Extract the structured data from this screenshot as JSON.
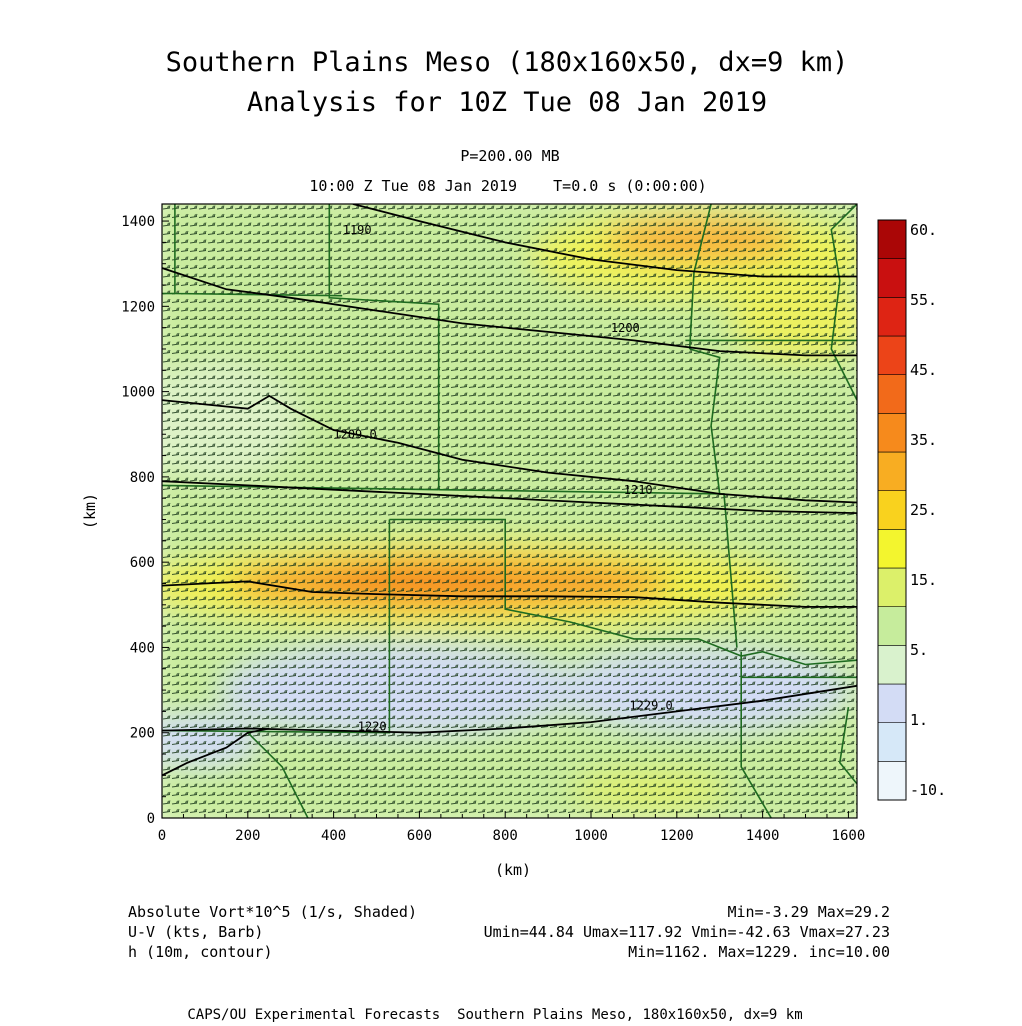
{
  "title_line1": "Southern Plains Meso (180x160x50, dx=9 km)",
  "title_line2": "Analysis for 10Z Tue 08 Jan 2019",
  "subtitle_level": "P=200.00 MB",
  "subtitle_time": "10:00 Z Tue 08 Jan 2019    T=0.0 s (0:00:00)",
  "xlabel": "(km)",
  "ylabel": "(km)",
  "info": {
    "vort_label": "Absolute Vort*10^5 (1/s, Shaded)",
    "vort_stats": "Min=-3.29 Max=29.2",
    "wind_label": "U-V (kts, Barb)",
    "wind_stats": "Umin=44.84 Umax=117.92 Vmin=-42.63 Vmax=27.23",
    "height_label": "h (10m, contour)",
    "height_stats": "Min=1162. Max=1229. inc=10.00"
  },
  "footer": "CAPS/OU Experimental Forecasts  Southern Plains Meso, 180x160x50, dx=9 km",
  "colors": {
    "levels": [
      "#eef6fb",
      "#d6e8f8",
      "#d3dcf5",
      "#d9f2cd",
      "#c6ec9c",
      "#dcf06a",
      "#f3f52e",
      "#f9d21e",
      "#f8ad22",
      "#f68a1c",
      "#f26a1a",
      "#ec4418",
      "#de2414",
      "#c91010",
      "#aa0606"
    ],
    "contour": "#000000",
    "border": "#1e6b20",
    "barb": "#1b3a1b"
  },
  "chart_data": {
    "type": "heatmap",
    "xlim": [
      0,
      1620
    ],
    "ylim": [
      0,
      1440
    ],
    "x_ticks": [
      "0",
      "200",
      "400",
      "600",
      "800",
      "1000",
      "1200",
      "1400",
      "1600"
    ],
    "y_ticks": [
      "0",
      "200",
      "400",
      "600",
      "800",
      "1000",
      "1200",
      "1400"
    ],
    "colorbar_labels": [
      "60.",
      "55.",
      "45.",
      "35.",
      "25.",
      "15.",
      "5.",
      "1.",
      "-10."
    ],
    "contour_labels": [
      {
        "text": "1190",
        "x": 455,
        "y": 1370
      },
      {
        "text": "1200",
        "x": 1080,
        "y": 1140
      },
      {
        "text": "1209.0",
        "x": 450,
        "y": 890
      },
      {
        "text": "1210",
        "x": 1110,
        "y": 760
      },
      {
        "text": "1220",
        "x": 490,
        "y": 205
      },
      {
        "text": "1229.0",
        "x": 1140,
        "y": 255
      }
    ],
    "contours": [
      [
        [
          445,
          1440
        ],
        [
          600,
          1400
        ],
        [
          800,
          1350
        ],
        [
          1000,
          1310
        ],
        [
          1200,
          1285
        ],
        [
          1400,
          1270
        ],
        [
          1620,
          1270
        ]
      ],
      [
        [
          0,
          1290
        ],
        [
          150,
          1240
        ],
        [
          300,
          1220
        ],
        [
          500,
          1190
        ],
        [
          700,
          1160
        ],
        [
          900,
          1140
        ],
        [
          1100,
          1120
        ],
        [
          1300,
          1095
        ],
        [
          1500,
          1085
        ],
        [
          1620,
          1085
        ]
      ],
      [
        [
          0,
          980
        ],
        [
          100,
          970
        ],
        [
          200,
          960
        ],
        [
          250,
          990
        ],
        [
          300,
          960
        ],
        [
          400,
          910
        ],
        [
          550,
          880
        ],
        [
          700,
          840
        ],
        [
          900,
          810
        ],
        [
          1100,
          790
        ],
        [
          1300,
          760
        ],
        [
          1500,
          745
        ],
        [
          1620,
          740
        ]
      ],
      [
        [
          0,
          790
        ],
        [
          200,
          780
        ],
        [
          400,
          770
        ],
        [
          600,
          760
        ],
        [
          800,
          750
        ],
        [
          1000,
          740
        ],
        [
          1200,
          730
        ],
        [
          1400,
          720
        ],
        [
          1620,
          715
        ]
      ],
      [
        [
          0,
          545
        ],
        [
          200,
          555
        ],
        [
          350,
          530
        ],
        [
          500,
          525
        ],
        [
          700,
          520
        ],
        [
          900,
          520
        ],
        [
          1100,
          518
        ],
        [
          1300,
          505
        ],
        [
          1500,
          495
        ],
        [
          1620,
          495
        ]
      ],
      [
        [
          0,
          205
        ],
        [
          200,
          210
        ],
        [
          400,
          205
        ],
        [
          600,
          200
        ],
        [
          800,
          210
        ],
        [
          1000,
          225
        ],
        [
          1200,
          250
        ],
        [
          1400,
          275
        ],
        [
          1620,
          310
        ]
      ],
      [
        [
          0,
          100
        ],
        [
          60,
          130
        ],
        [
          150,
          165
        ],
        [
          200,
          200
        ],
        [
          250,
          210
        ]
      ]
    ],
    "borders": [
      [
        [
          30,
          1440
        ],
        [
          30,
          1230
        ],
        [
          420,
          1225
        ]
      ],
      [
        [
          30,
          1230
        ],
        [
          0,
          1230
        ]
      ],
      [
        [
          390,
          1440
        ],
        [
          390,
          1220
        ],
        [
          645,
          1205
        ],
        [
          645,
          770
        ]
      ],
      [
        [
          645,
          770
        ],
        [
          1310,
          760
        ]
      ],
      [
        [
          0,
          780
        ],
        [
          645,
          770
        ]
      ],
      [
        [
          530,
          700
        ],
        [
          800,
          700
        ],
        [
          800,
          490
        ],
        [
          950,
          460
        ],
        [
          1100,
          420
        ],
        [
          1250,
          420
        ],
        [
          1350,
          380
        ],
        [
          1400,
          390
        ],
        [
          1500,
          360
        ],
        [
          1620,
          370
        ]
      ],
      [
        [
          530,
          700
        ],
        [
          530,
          200
        ],
        [
          0,
          205
        ]
      ],
      [
        [
          200,
          200
        ],
        [
          280,
          120
        ],
        [
          340,
          0
        ]
      ],
      [
        [
          1350,
          390
        ],
        [
          1350,
          120
        ],
        [
          1420,
          0
        ]
      ],
      [
        [
          1280,
          1440
        ],
        [
          1240,
          1280
        ],
        [
          1230,
          1100
        ]
      ],
      [
        [
          1230,
          1100
        ],
        [
          1300,
          1080
        ],
        [
          1280,
          920
        ],
        [
          1300,
          760
        ],
        [
          1310,
          760
        ],
        [
          1340,
          400
        ]
      ],
      [
        [
          1220,
          1120
        ],
        [
          1620,
          1120
        ]
      ],
      [
        [
          1620,
          1440
        ],
        [
          1560,
          1380
        ],
        [
          1580,
          1260
        ],
        [
          1560,
          1100
        ],
        [
          1620,
          980
        ]
      ],
      [
        [
          1350,
          330
        ],
        [
          1620,
          330
        ]
      ],
      [
        [
          1600,
          260
        ],
        [
          1580,
          130
        ],
        [
          1620,
          80
        ]
      ]
    ]
  }
}
